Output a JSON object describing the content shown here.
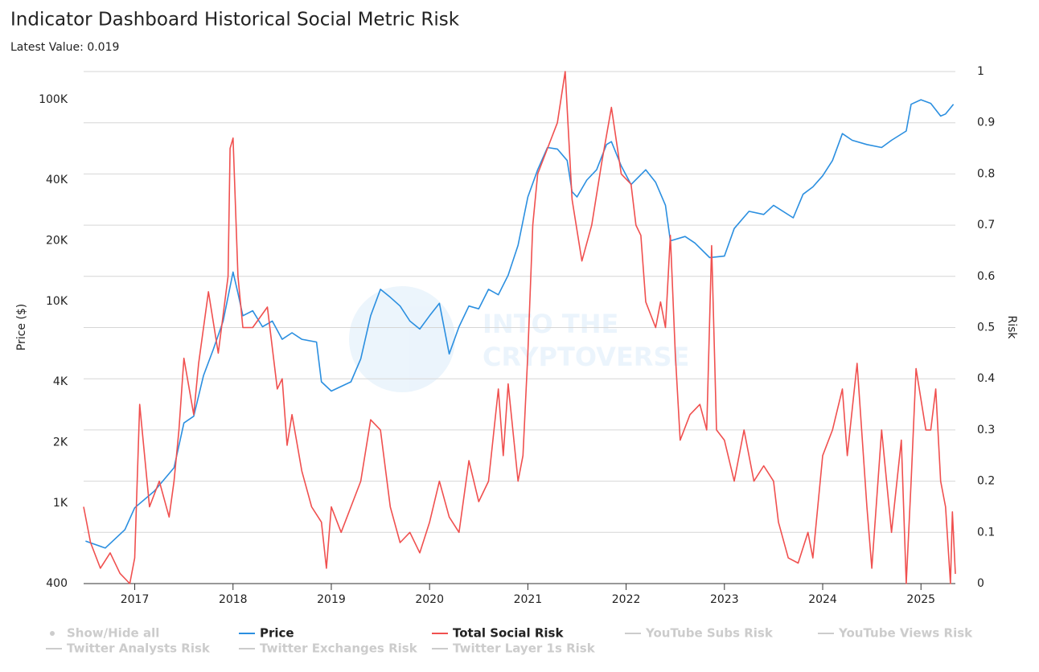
{
  "chart_data": {
    "type": "line",
    "title": "Indicator Dashboard Historical Social Metric Risk",
    "subtitle": "Latest Value: 0.019",
    "watermark": [
      "INTO THE",
      "CRYPTOVERSE"
    ],
    "y_label": "Price ($)",
    "y2_label": "Risk",
    "log_y": true,
    "grid": true,
    "xlim": [
      2016.48,
      2025.35
    ],
    "xticks": [
      2017,
      2018,
      2019,
      2020,
      2021,
      2022,
      2023,
      2024,
      2025
    ],
    "ylim": [
      400,
      138000
    ],
    "yticks": [
      400,
      {
        "value": 1000,
        "label": "1K"
      },
      {
        "value": 2000,
        "label": "2K"
      },
      {
        "value": 4000,
        "label": "4K"
      },
      {
        "value": 10000,
        "label": "10K"
      },
      {
        "value": 20000,
        "label": "20K"
      },
      {
        "value": 40000,
        "label": "40K"
      },
      {
        "value": 100000,
        "label": "100K"
      }
    ],
    "y2lim": [
      0,
      1
    ],
    "y2ticks": [
      0,
      0.1,
      0.2,
      0.3,
      0.4,
      0.5,
      0.6,
      0.7,
      0.8,
      0.9,
      1
    ],
    "legend_toggle": "Show/Hide all",
    "series": [
      {
        "name": "Price",
        "color": "#2b8fe0",
        "axis": "y",
        "x": [
          2016.5,
          2016.7,
          2016.9,
          2017.0,
          2017.2,
          2017.4,
          2017.5,
          2017.6,
          2017.7,
          2017.8,
          2017.9,
          2018.0,
          2018.05,
          2018.1,
          2018.2,
          2018.3,
          2018.4,
          2018.5,
          2018.6,
          2018.7,
          2018.85,
          2018.9,
          2019.0,
          2019.2,
          2019.3,
          2019.4,
          2019.5,
          2019.6,
          2019.7,
          2019.8,
          2019.9,
          2020.0,
          2020.1,
          2020.2,
          2020.3,
          2020.4,
          2020.5,
          2020.6,
          2020.7,
          2020.8,
          2020.9,
          2021.0,
          2021.1,
          2021.2,
          2021.3,
          2021.4,
          2021.45,
          2021.5,
          2021.6,
          2021.7,
          2021.8,
          2021.85,
          2021.95,
          2022.05,
          2022.2,
          2022.3,
          2022.4,
          2022.45,
          2022.6,
          2022.7,
          2022.85,
          2023.0,
          2023.1,
          2023.25,
          2023.4,
          2023.5,
          2023.7,
          2023.8,
          2023.9,
          2024.0,
          2024.1,
          2024.2,
          2024.3,
          2024.45,
          2024.6,
          2024.7,
          2024.85,
          2024.9,
          2025.0,
          2025.1,
          2025.2,
          2025.25,
          2025.33
        ],
        "values": [
          650,
          600,
          740,
          950,
          1150,
          1500,
          2500,
          2700,
          4300,
          5800,
          8000,
          14000,
          11000,
          8500,
          9000,
          7500,
          8000,
          6500,
          7000,
          6500,
          6300,
          4000,
          3600,
          4000,
          5200,
          8500,
          11500,
          10500,
          9500,
          8000,
          7300,
          8500,
          9800,
          5500,
          7500,
          9500,
          9200,
          11500,
          10800,
          13500,
          19000,
          33000,
          45000,
          58000,
          57000,
          50000,
          35000,
          33000,
          40000,
          45000,
          60000,
          62000,
          47000,
          38000,
          45000,
          39000,
          30000,
          20000,
          21000,
          19500,
          16500,
          16800,
          23000,
          28000,
          27000,
          30000,
          26000,
          34000,
          37000,
          42000,
          50000,
          68000,
          63000,
          60000,
          58000,
          63000,
          70000,
          95000,
          100000,
          96000,
          83000,
          85000,
          95000
        ]
      },
      {
        "name": "Total Social Risk",
        "color": "#f0504f",
        "axis": "y2",
        "x": [
          2016.48,
          2016.55,
          2016.65,
          2016.75,
          2016.85,
          2016.95,
          2017.0,
          2017.05,
          2017.15,
          2017.25,
          2017.35,
          2017.4,
          2017.45,
          2017.5,
          2017.6,
          2017.65,
          2017.75,
          2017.85,
          2017.95,
          2017.97,
          2018.0,
          2018.05,
          2018.1,
          2018.2,
          2018.35,
          2018.45,
          2018.5,
          2018.55,
          2018.6,
          2018.7,
          2018.8,
          2018.9,
          2018.95,
          2019.0,
          2019.1,
          2019.2,
          2019.3,
          2019.4,
          2019.5,
          2019.6,
          2019.7,
          2019.8,
          2019.9,
          2020.0,
          2020.1,
          2020.2,
          2020.3,
          2020.4,
          2020.5,
          2020.6,
          2020.7,
          2020.75,
          2020.8,
          2020.9,
          2020.95,
          2021.0,
          2021.05,
          2021.1,
          2021.2,
          2021.3,
          2021.38,
          2021.45,
          2021.55,
          2021.65,
          2021.75,
          2021.85,
          2021.95,
          2022.05,
          2022.1,
          2022.15,
          2022.2,
          2022.3,
          2022.35,
          2022.4,
          2022.45,
          2022.5,
          2022.55,
          2022.65,
          2022.75,
          2022.82,
          2022.87,
          2022.92,
          2023.0,
          2023.1,
          2023.2,
          2023.3,
          2023.4,
          2023.5,
          2023.55,
          2023.65,
          2023.75,
          2023.85,
          2023.9,
          2024.0,
          2024.1,
          2024.2,
          2024.25,
          2024.35,
          2024.45,
          2024.5,
          2024.6,
          2024.7,
          2024.8,
          2024.85,
          2024.9,
          2024.95,
          2025.05,
          2025.1,
          2025.15,
          2025.2,
          2025.25,
          2025.3,
          2025.32,
          2025.35
        ],
        "values": [
          0.15,
          0.08,
          0.03,
          0.06,
          0.02,
          0.0,
          0.05,
          0.35,
          0.15,
          0.2,
          0.13,
          0.2,
          0.3,
          0.44,
          0.33,
          0.43,
          0.57,
          0.45,
          0.6,
          0.85,
          0.87,
          0.6,
          0.5,
          0.5,
          0.54,
          0.38,
          0.4,
          0.27,
          0.33,
          0.22,
          0.15,
          0.12,
          0.03,
          0.15,
          0.1,
          0.15,
          0.2,
          0.32,
          0.3,
          0.15,
          0.08,
          0.1,
          0.06,
          0.12,
          0.2,
          0.13,
          0.1,
          0.24,
          0.16,
          0.2,
          0.38,
          0.25,
          0.39,
          0.2,
          0.25,
          0.45,
          0.7,
          0.8,
          0.85,
          0.9,
          1.0,
          0.75,
          0.63,
          0.7,
          0.82,
          0.93,
          0.8,
          0.78,
          0.7,
          0.68,
          0.55,
          0.5,
          0.55,
          0.5,
          0.68,
          0.45,
          0.28,
          0.33,
          0.35,
          0.3,
          0.66,
          0.3,
          0.28,
          0.2,
          0.3,
          0.2,
          0.23,
          0.2,
          0.12,
          0.05,
          0.04,
          0.1,
          0.05,
          0.25,
          0.3,
          0.38,
          0.25,
          0.43,
          0.15,
          0.03,
          0.3,
          0.1,
          0.28,
          0.0,
          0.2,
          0.42,
          0.3,
          0.3,
          0.38,
          0.2,
          0.15,
          0.0,
          0.14,
          0.019
        ]
      }
    ],
    "hidden_series": [
      "YouTube Subs Risk",
      "YouTube Views Risk",
      "Twitter Analysts Risk",
      "Twitter Exchanges Risk",
      "Twitter Layer 1s Risk"
    ],
    "hidden_color": "#cccccc"
  }
}
